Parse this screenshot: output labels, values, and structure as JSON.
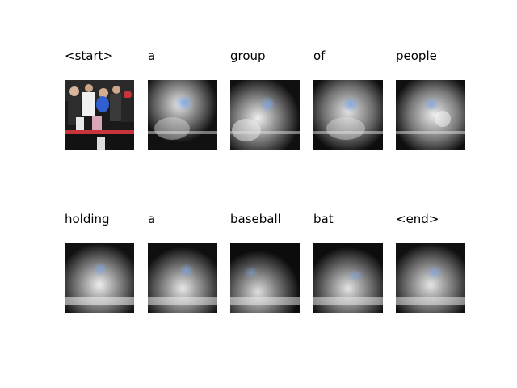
{
  "figure": {
    "row1_words": [
      "<start>",
      "a",
      "group",
      "of",
      "people"
    ],
    "row2_words": [
      "holding",
      "a",
      "baseball",
      "bat",
      "<end>"
    ]
  },
  "colors": {
    "background": "#ffffff",
    "heat_light": "#f2f2f2",
    "heat_dark": "#0b0b0b",
    "tint_blue": "#7aa6e6",
    "photo_red": "#c7343a",
    "photo_blue": "#2f5fd0"
  }
}
